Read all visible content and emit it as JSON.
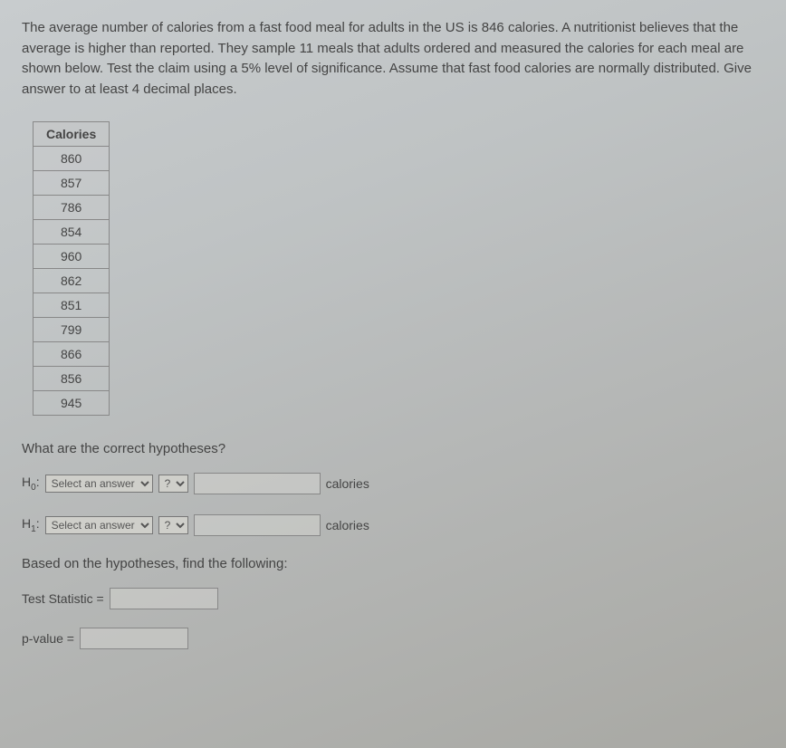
{
  "problem_text": "The average number of calories from a fast food meal for adults in the US is 846 calories. A nutritionist believes that the average is higher than reported. They sample 11 meals that adults ordered and measured the calories for each meal are shown below. Test the claim using a 5% level of significance. Assume that fast food calories are normally distributed. Give answer to at least 4 decimal places.",
  "table": {
    "header": "Calories",
    "rows": [
      "860",
      "857",
      "786",
      "854",
      "960",
      "862",
      "851",
      "799",
      "866",
      "856",
      "945"
    ]
  },
  "question_hypotheses": "What are the correct hypotheses?",
  "h0_label": "H",
  "h0_sub": "0",
  "h1_label": "H",
  "h1_sub": "1",
  "select_placeholder": "Select an answer",
  "op_placeholder": "?",
  "unit": "calories",
  "based_on_text": "Based on the hypotheses, find the following:",
  "test_stat_label": "Test Statistic =",
  "pvalue_label": "p-value ="
}
